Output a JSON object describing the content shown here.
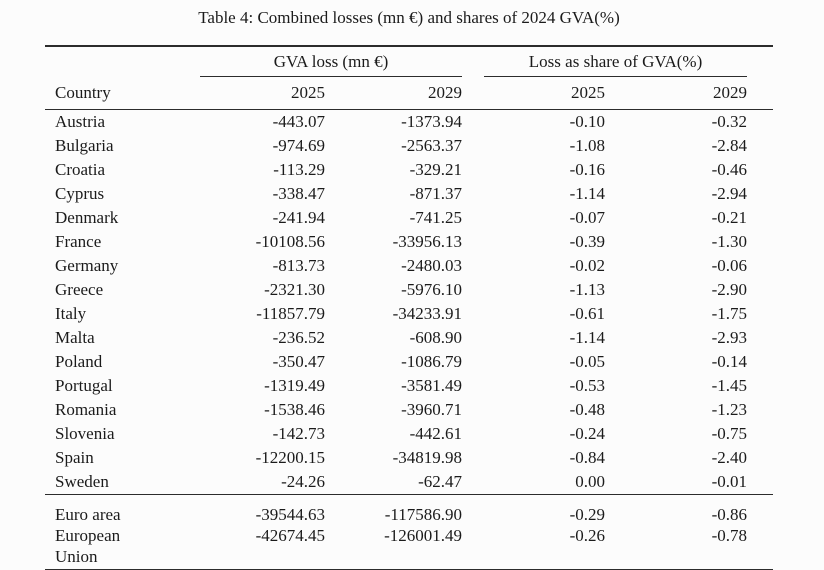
{
  "caption": "Table 4: Combined losses (mn €) and shares of 2024 GVA(%)",
  "table": {
    "group_headers": {
      "gva_loss": "GVA loss (mn €)",
      "share": "Loss as share of GVA(%)"
    },
    "columns": {
      "country": "Country",
      "gva_2025": "2025",
      "gva_2029": "2029",
      "share_2025": "2025",
      "share_2029": "2029"
    },
    "rows": [
      {
        "country": "Austria",
        "gva_2025": "-443.07",
        "gva_2029": "-1373.94",
        "share_2025": "-0.10",
        "share_2029": "-0.32"
      },
      {
        "country": "Bulgaria",
        "gva_2025": "-974.69",
        "gva_2029": "-2563.37",
        "share_2025": "-1.08",
        "share_2029": "-2.84"
      },
      {
        "country": "Croatia",
        "gva_2025": "-113.29",
        "gva_2029": "-329.21",
        "share_2025": "-0.16",
        "share_2029": "-0.46"
      },
      {
        "country": "Cyprus",
        "gva_2025": "-338.47",
        "gva_2029": "-871.37",
        "share_2025": "-1.14",
        "share_2029": "-2.94"
      },
      {
        "country": "Denmark",
        "gva_2025": "-241.94",
        "gva_2029": "-741.25",
        "share_2025": "-0.07",
        "share_2029": "-0.21"
      },
      {
        "country": "France",
        "gva_2025": "-10108.56",
        "gva_2029": "-33956.13",
        "share_2025": "-0.39",
        "share_2029": "-1.30"
      },
      {
        "country": "Germany",
        "gva_2025": "-813.73",
        "gva_2029": "-2480.03",
        "share_2025": "-0.02",
        "share_2029": "-0.06"
      },
      {
        "country": "Greece",
        "gva_2025": "-2321.30",
        "gva_2029": "-5976.10",
        "share_2025": "-1.13",
        "share_2029": "-2.90"
      },
      {
        "country": "Italy",
        "gva_2025": "-11857.79",
        "gva_2029": "-34233.91",
        "share_2025": "-0.61",
        "share_2029": "-1.75"
      },
      {
        "country": "Malta",
        "gva_2025": "-236.52",
        "gva_2029": "-608.90",
        "share_2025": "-1.14",
        "share_2029": "-2.93"
      },
      {
        "country": "Poland",
        "gva_2025": "-350.47",
        "gva_2029": "-1086.79",
        "share_2025": "-0.05",
        "share_2029": "-0.14"
      },
      {
        "country": "Portugal",
        "gva_2025": "-1319.49",
        "gva_2029": "-3581.49",
        "share_2025": "-0.53",
        "share_2029": "-1.45"
      },
      {
        "country": "Romania",
        "gva_2025": "-1538.46",
        "gva_2029": "-3960.71",
        "share_2025": "-0.48",
        "share_2029": "-1.23"
      },
      {
        "country": "Slovenia",
        "gva_2025": "-142.73",
        "gva_2029": "-442.61",
        "share_2025": "-0.24",
        "share_2029": "-0.75"
      },
      {
        "country": "Spain",
        "gva_2025": "-12200.15",
        "gva_2029": "-34819.98",
        "share_2025": "-0.84",
        "share_2029": "-2.40"
      },
      {
        "country": "Sweden",
        "gva_2025": "-24.26",
        "gva_2029": "-62.47",
        "share_2025": "0.00",
        "share_2029": "-0.01"
      }
    ],
    "aggregate_rows": [
      {
        "country": "Euro area",
        "gva_2025": "-39544.63",
        "gva_2029": "-117586.90",
        "share_2025": "-0.29",
        "share_2029": "-0.86"
      },
      {
        "country": "European Union",
        "gva_2025": "-42674.45",
        "gva_2029": "-126001.49",
        "share_2025": "-0.26",
        "share_2029": "-0.78"
      }
    ]
  },
  "colors": {
    "text": "#1b1b1b",
    "rule": "#2c2c2c",
    "background": "#fcfcfc"
  }
}
